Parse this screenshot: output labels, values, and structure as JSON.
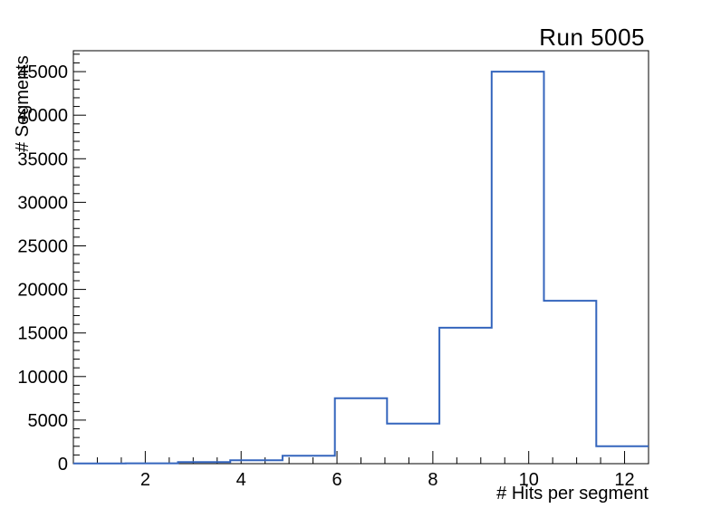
{
  "window": {
    "background": "#ffffff"
  },
  "chart_data": {
    "type": "histogram-step",
    "title": "Run 5005",
    "xlabel": "# Hits per segment",
    "ylabel": "# Segments",
    "bin_edges": [
      0.5,
      1.591,
      2.682,
      3.773,
      4.864,
      5.955,
      7.045,
      8.136,
      9.227,
      10.318,
      11.409,
      12.5
    ],
    "values": [
      20,
      40,
      180,
      400,
      900,
      7500,
      4600,
      15600,
      45000,
      18700,
      2000
    ],
    "xlim": [
      0.5,
      12.5
    ],
    "ylim": [
      0,
      47400
    ],
    "x_major_ticks": [
      2,
      4,
      6,
      8,
      10,
      12
    ],
    "x_tick_labels": [
      "2",
      "4",
      "6",
      "8",
      "10",
      "12"
    ],
    "x_minor_step": 0.5,
    "y_major_step": 5000,
    "y_minor_step": 1000,
    "y_tick_labels": [
      "0",
      "5000",
      "10000",
      "15000",
      "20000",
      "25000",
      "30000",
      "35000",
      "40000",
      "45000"
    ],
    "legend": "none",
    "grid": false,
    "line_color": "#3465bd",
    "axis_color": "#000000",
    "tick_label_font_px": 20
  }
}
